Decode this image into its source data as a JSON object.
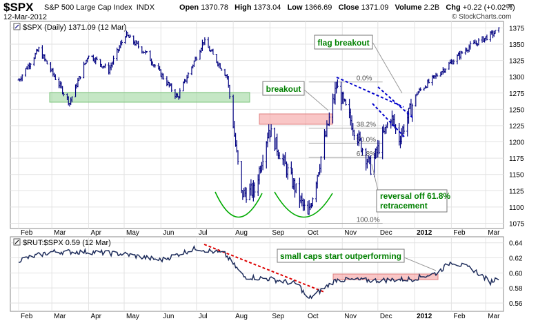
{
  "header": {
    "symbol": "$SPX",
    "description": "S&P 500 Large Cap Index",
    "exchange": "INDX",
    "date": "12-Mar-2012",
    "open_label": "Open",
    "open": "1370.78",
    "high_label": "High",
    "high": "1373.04",
    "low_label": "Low",
    "low": "1366.69",
    "close_label": "Close",
    "close": "1371.09",
    "volume_label": "Volume",
    "volume": "2.2B",
    "chg_label": "Chg",
    "chg": "+0.22 (+0.02%)",
    "credit": "© StockCharts.com"
  },
  "colors": {
    "bars": "#000080",
    "green_zone": "#9ed79e",
    "red_zone": "#f5a0a0",
    "annotation_text": "#008000",
    "trend_blue": "#0000cc",
    "trend_red": "#dd0000",
    "rut_line": "#1c2b5a"
  },
  "chart_data": [
    {
      "type": "ohlc",
      "legend": "$SPX (Daily) 1371.09 (12 Mar)",
      "y_axis_side": "right",
      "ylim": [
        1067,
        1385
      ],
      "y_ticks": [
        1075,
        1100,
        1125,
        1150,
        1175,
        1200,
        1225,
        1250,
        1275,
        1300,
        1325,
        1350,
        1375
      ],
      "x_labels": [
        "Feb",
        "Mar",
        "Apr",
        "May",
        "Jun",
        "Jul",
        "Aug",
        "Sep",
        "Oct",
        "Nov",
        "Dec",
        "2012",
        "Feb",
        "Mar"
      ],
      "price_path": [
        [
          "2011-02-01",
          1295
        ],
        [
          "2011-02-18",
          1342
        ],
        [
          "2011-03-16",
          1260
        ],
        [
          "2011-04-01",
          1335
        ],
        [
          "2011-04-18",
          1310
        ],
        [
          "2011-05-02",
          1365
        ],
        [
          "2011-05-20",
          1335
        ],
        [
          "2011-06-15",
          1268
        ],
        [
          "2011-07-07",
          1355
        ],
        [
          "2011-07-27",
          1300
        ],
        [
          "2011-08-08",
          1120
        ],
        [
          "2011-08-19",
          1125
        ],
        [
          "2011-08-31",
          1220
        ],
        [
          "2011-09-22",
          1130
        ],
        [
          "2011-10-03",
          1085
        ],
        [
          "2011-10-27",
          1285
        ],
        [
          "2011-11-25",
          1160
        ],
        [
          "2011-12-12",
          1240
        ],
        [
          "2011-12-19",
          1205
        ],
        [
          "2012-01-03",
          1275
        ],
        [
          "2012-02-15",
          1345
        ],
        [
          "2012-03-12",
          1371
        ]
      ],
      "fib_levels": [
        {
          "label": "0.0%",
          "value": 1292
        },
        {
          "label": "38.2%",
          "value": 1221
        },
        {
          "label": "50.0%",
          "value": 1198
        },
        {
          "label": "61.8%",
          "value": 1176
        },
        {
          "label": "100.0%",
          "value": 1075
        }
      ],
      "annotations": [
        "breakout",
        "flag breakout",
        "reversal off 61.8% retracement"
      ]
    },
    {
      "type": "line",
      "legend": "$RUT:$SPX 0.59 (12 Mar)",
      "y_axis_side": "right",
      "ylim": [
        0.549,
        0.648
      ],
      "y_ticks": [
        0.56,
        0.58,
        0.6,
        0.62,
        0.64
      ],
      "x_labels": [
        "Feb",
        "Mar",
        "Apr",
        "May",
        "Jun",
        "Jul",
        "Aug",
        "Sep",
        "Oct",
        "Nov",
        "Dec",
        "2012",
        "Feb",
        "Mar"
      ],
      "ratio_path": [
        [
          "2011-02-01",
          0.617
        ],
        [
          "2011-03-01",
          0.628
        ],
        [
          "2011-04-01",
          0.628
        ],
        [
          "2011-05-01",
          0.625
        ],
        [
          "2011-06-01",
          0.617
        ],
        [
          "2011-07-01",
          0.633
        ],
        [
          "2011-07-25",
          0.625
        ],
        [
          "2011-08-10",
          0.595
        ],
        [
          "2011-09-01",
          0.592
        ],
        [
          "2011-09-25",
          0.585
        ],
        [
          "2011-10-03",
          0.565
        ],
        [
          "2011-10-27",
          0.591
        ],
        [
          "2011-12-01",
          0.59
        ],
        [
          "2011-12-30",
          0.592
        ],
        [
          "2012-01-20",
          0.6
        ],
        [
          "2012-02-01",
          0.615
        ],
        [
          "2012-02-20",
          0.604
        ],
        [
          "2012-03-05",
          0.588
        ],
        [
          "2012-03-12",
          0.594
        ]
      ],
      "annotations": [
        "small caps start outperforming"
      ]
    }
  ]
}
